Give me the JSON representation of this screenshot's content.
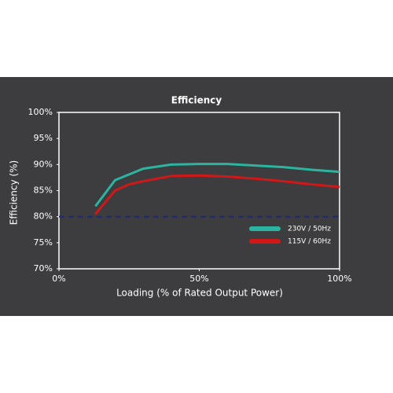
{
  "chart_data": {
    "type": "line",
    "title": "Efficiency",
    "x_label": "Loading (% of Rated Output Power)",
    "y_label": "Efficiency (%)",
    "series": [
      {
        "name": "230V / 50Hz",
        "color": "#2bb5a0",
        "x": [
          13,
          20,
          30,
          40,
          50,
          60,
          70,
          80,
          90,
          100
        ],
        "values": [
          82,
          87,
          89.2,
          90,
          90.1,
          90.1,
          89.8,
          89.5,
          89,
          88.6
        ]
      },
      {
        "name": "115V / 60Hz",
        "color": "#d01818",
        "x": [
          13,
          20,
          25,
          30,
          40,
          50,
          60,
          70,
          80,
          90,
          100
        ],
        "values": [
          80.5,
          85,
          86.2,
          86.8,
          87.8,
          87.9,
          87.7,
          87.3,
          86.8,
          86.2,
          85.7
        ]
      }
    ],
    "reference_line": {
      "value": 80,
      "color": "#1a2a80",
      "style": "dashed"
    },
    "xlim": [
      0,
      100
    ],
    "xticks": [
      {
        "value": 0,
        "label": "0%"
      },
      {
        "value": 50,
        "label": "50%"
      },
      {
        "value": 100,
        "label": "100%"
      }
    ],
    "ylim": [
      70,
      100
    ],
    "yticks": [
      {
        "value": 70,
        "label": "70%"
      },
      {
        "value": 75,
        "label": "75%"
      },
      {
        "value": 80,
        "label": "80%"
      },
      {
        "value": 85,
        "label": "85%"
      },
      {
        "value": 90,
        "label": "90%"
      },
      {
        "value": 95,
        "label": "95%"
      },
      {
        "value": 100,
        "label": "100%"
      }
    ],
    "legend": "lower right",
    "grid": false
  }
}
